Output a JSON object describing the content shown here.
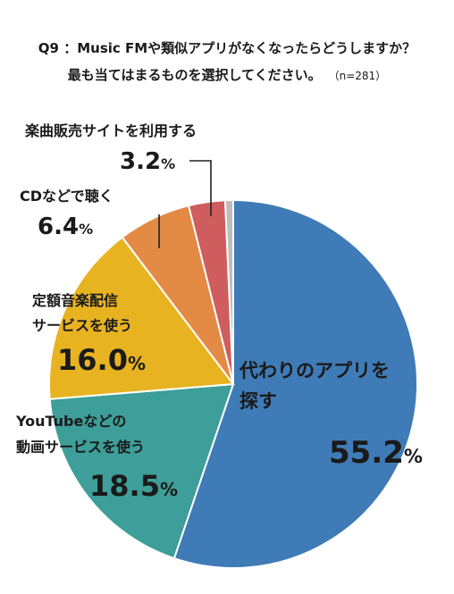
{
  "title": {
    "line1": "Q9 ：Music FMや類似アプリがなくなったらどうしますか？",
    "line2": "最も当てはまるものを選択してください。",
    "n": "（n=281）"
  },
  "chart_data": {
    "type": "pie",
    "slices": [
      {
        "label_lines": [
          "代わりのアプリを",
          "探す"
        ],
        "value": 55.2,
        "value_text": "55.2",
        "color": "#3f7bb6"
      },
      {
        "label_lines": [
          "YouTubeなどの",
          "動画サービスを使う"
        ],
        "value": 18.5,
        "value_text": "18.5",
        "color": "#3e9e99"
      },
      {
        "label_lines": [
          "定額音楽配信",
          "サービスを使う"
        ],
        "value": 16.0,
        "value_text": "16.0",
        "color": "#e8b321"
      },
      {
        "label_lines": [
          "CDなどで聴く"
        ],
        "value": 6.4,
        "value_text": "6.4",
        "color": "#e38a45"
      },
      {
        "label_lines": [
          "楽曲販売サイトを利用する"
        ],
        "value": 3.2,
        "value_text": "3.2",
        "color": "#cf5d5d"
      },
      {
        "label_lines": [
          ""
        ],
        "value": 0.7,
        "value_text": "",
        "color": "#bdbdbd"
      }
    ],
    "unit": "%"
  }
}
